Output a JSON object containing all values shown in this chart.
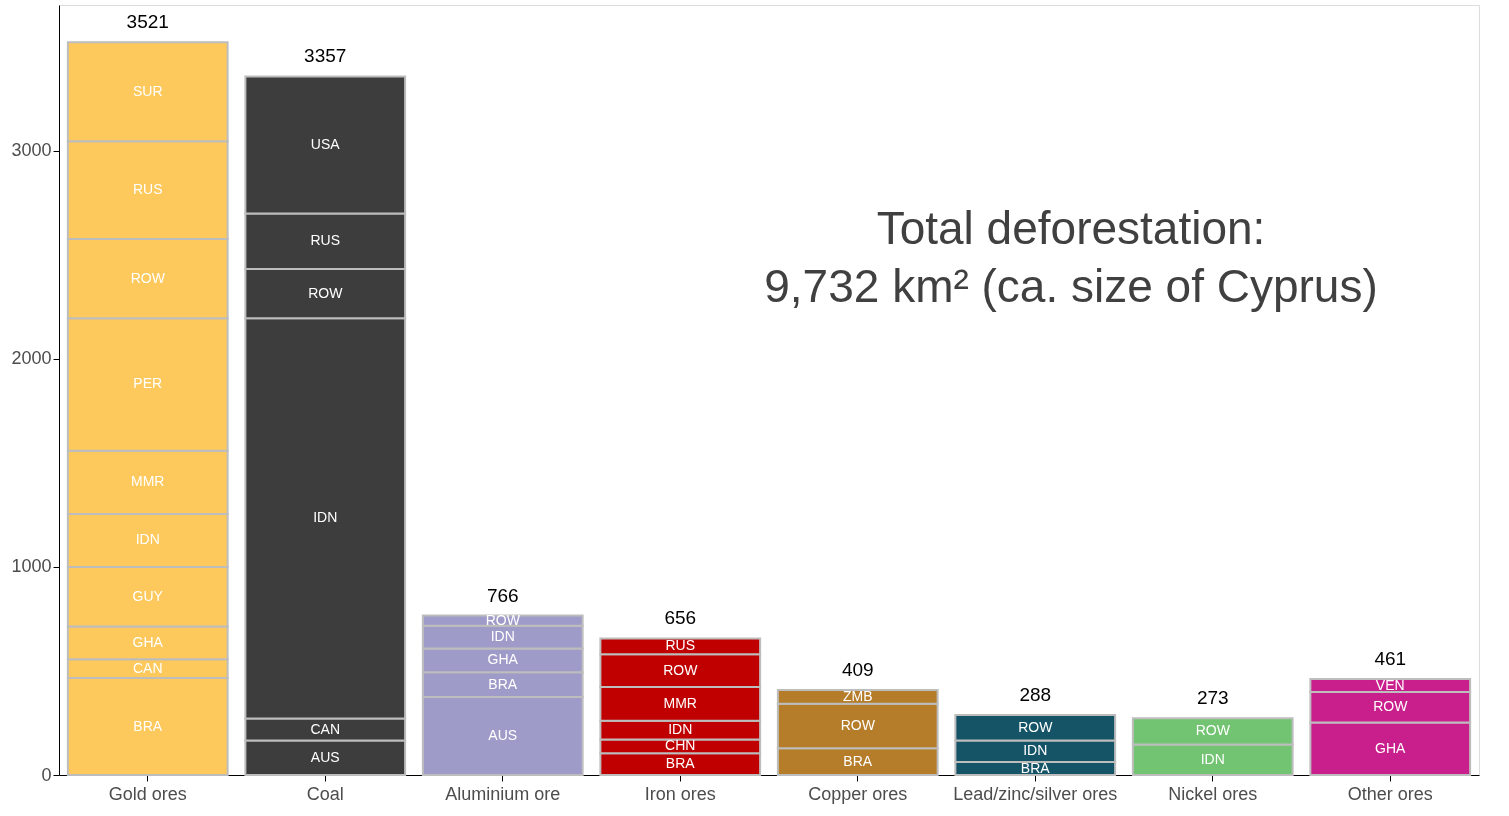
{
  "chart_data": {
    "type": "bar",
    "stacked": true,
    "categories": [
      "Gold ores",
      "Coal",
      "Aluminium ore",
      "Iron ores",
      "Copper ores",
      "Lead/zinc/silver ores",
      "Nickel ores",
      "Other ores"
    ],
    "series": [
      {
        "name": "AUS",
        "colors": [
          "#fdc95c",
          "#3d3d3d",
          "#9f9bc9",
          "#c00000",
          "#b57c2a",
          "#155467",
          "#72c472",
          "#c91f8c"
        ],
        "values": [
          null,
          166,
          375,
          null,
          null,
          null,
          null,
          null
        ]
      },
      {
        "name": "BRA",
        "colors": [
          "#fdc95c",
          "#3d3d3d",
          "#9f9bc9",
          "#c00000",
          "#b57c2a",
          "#155467",
          "#72c472",
          "#c91f8c"
        ],
        "values": [
          466,
          null,
          119,
          105,
          128,
          62,
          null,
          null
        ]
      },
      {
        "name": "CAN",
        "colors": [
          "#fdc95c",
          "#3d3d3d",
          "#9f9bc9",
          "#c00000",
          "#b57c2a",
          "#155467",
          "#72c472",
          "#c91f8c"
        ],
        "values": [
          90,
          105,
          null,
          null,
          null,
          null,
          null,
          null
        ]
      },
      {
        "name": "CHN",
        "colors": [
          "#fdc95c",
          "#3d3d3d",
          "#9f9bc9",
          "#c00000",
          "#b57c2a",
          "#155467",
          "#72c472",
          "#c91f8c"
        ],
        "values": [
          null,
          null,
          null,
          66,
          null,
          null,
          null,
          null
        ]
      },
      {
        "name": "GHA",
        "colors": [
          "#fdc95c",
          "#3d3d3d",
          "#9f9bc9",
          "#c00000",
          "#b57c2a",
          "#155467",
          "#72c472",
          "#c91f8c"
        ],
        "values": [
          157,
          null,
          114,
          null,
          null,
          null,
          null,
          252
        ]
      },
      {
        "name": "GUY",
        "colors": [
          "#fdc95c",
          "#3d3d3d",
          "#9f9bc9",
          "#c00000",
          "#b57c2a",
          "#155467",
          "#72c472",
          "#c91f8c"
        ],
        "values": [
          287,
          null,
          null,
          null,
          null,
          null,
          null,
          null
        ]
      },
      {
        "name": "IDN",
        "colors": [
          "#fdc95c",
          "#3d3d3d",
          "#9f9bc9",
          "#c00000",
          "#b57c2a",
          "#155467",
          "#72c472",
          "#c91f8c"
        ],
        "values": [
          254,
          1924,
          109,
          90,
          null,
          104,
          147,
          null
        ]
      },
      {
        "name": "MMR",
        "colors": [
          "#fdc95c",
          "#3d3d3d",
          "#9f9bc9",
          "#c00000",
          "#b57c2a",
          "#155467",
          "#72c472",
          "#c91f8c"
        ],
        "values": [
          304,
          null,
          null,
          162,
          null,
          null,
          null,
          null
        ]
      },
      {
        "name": "PER",
        "colors": [
          "#fdc95c",
          "#3d3d3d",
          "#9f9bc9",
          "#c00000",
          "#b57c2a",
          "#155467",
          "#72c472",
          "#c91f8c"
        ],
        "values": [
          637,
          null,
          null,
          null,
          null,
          null,
          null,
          null
        ]
      },
      {
        "name": "ROW",
        "colors": [
          "#fdc95c",
          "#3d3d3d",
          "#9f9bc9",
          "#c00000",
          "#b57c2a",
          "#155467",
          "#72c472",
          "#c91f8c"
        ],
        "values": [
          380,
          237,
          49,
          157,
          214,
          122,
          126,
          147
        ]
      },
      {
        "name": "RUS",
        "colors": [
          "#fdc95c",
          "#3d3d3d",
          "#9f9bc9",
          "#c00000",
          "#b57c2a",
          "#155467",
          "#72c472",
          "#c91f8c"
        ],
        "values": [
          470,
          266,
          null,
          76,
          null,
          null,
          null,
          null
        ]
      },
      {
        "name": "SUR",
        "colors": [
          "#fdc95c",
          "#3d3d3d",
          "#9f9bc9",
          "#c00000",
          "#b57c2a",
          "#155467",
          "#72c472",
          "#c91f8c"
        ],
        "values": [
          476,
          null,
          null,
          null,
          null,
          null,
          null,
          null
        ]
      },
      {
        "name": "USA",
        "colors": [
          "#fdc95c",
          "#3d3d3d",
          "#9f9bc9",
          "#c00000",
          "#b57c2a",
          "#155467",
          "#72c472",
          "#c91f8c"
        ],
        "values": [
          null,
          659,
          null,
          null,
          null,
          null,
          null,
          null
        ]
      },
      {
        "name": "VEN",
        "colors": [
          "#fdc95c",
          "#3d3d3d",
          "#9f9bc9",
          "#c00000",
          "#b57c2a",
          "#155467",
          "#72c472",
          "#c91f8c"
        ],
        "values": [
          null,
          null,
          null,
          null,
          null,
          null,
          null,
          62
        ]
      },
      {
        "name": "ZMB",
        "colors": [
          "#fdc95c",
          "#3d3d3d",
          "#9f9bc9",
          "#c00000",
          "#b57c2a",
          "#155467",
          "#72c472",
          "#c91f8c"
        ],
        "values": [
          null,
          null,
          null,
          null,
          67,
          null,
          null,
          null
        ]
      }
    ],
    "totals": [
      "3521",
      "3357",
      "766",
      "656",
      "409",
      "288",
      "273",
      "461"
    ],
    "ylim": [
      0,
      3700
    ],
    "yticks": [
      0,
      1000,
      2000,
      3000
    ],
    "grid": false,
    "annotations": [
      "Total deforestation:",
      "9,732 km² (ca. size of Cyprus)"
    ]
  }
}
